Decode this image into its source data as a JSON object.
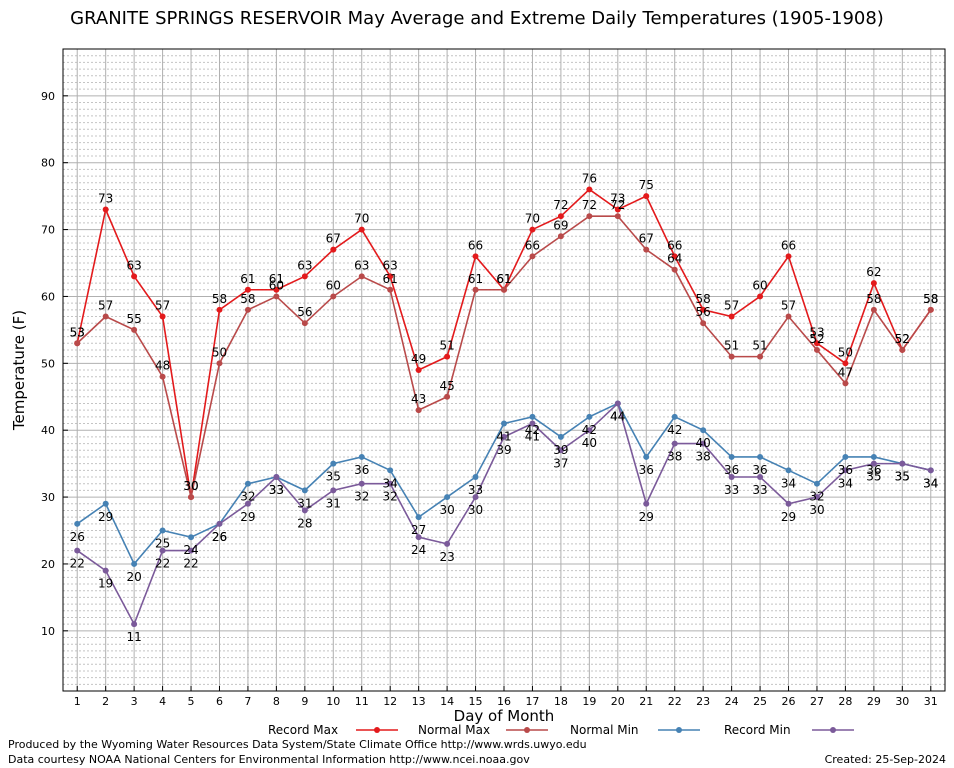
{
  "chart_data": {
    "type": "line",
    "title": "GRANITE SPRINGS RESERVOIR May Average and Extreme Daily Temperatures (1905-1908)",
    "xlabel": "Day of Month",
    "ylabel": "Temperature (F)",
    "xlim": [
      0.5,
      31.5
    ],
    "ylim": [
      1,
      97
    ],
    "yticks": [
      10,
      20,
      30,
      40,
      50,
      60,
      70,
      80,
      90
    ],
    "x": [
      1,
      2,
      3,
      4,
      5,
      6,
      7,
      8,
      9,
      10,
      11,
      12,
      13,
      14,
      15,
      16,
      17,
      18,
      19,
      20,
      21,
      22,
      23,
      24,
      25,
      26,
      27,
      28,
      29,
      30,
      31
    ],
    "grid": true,
    "legend_position": "bottom",
    "series": [
      {
        "name": "Record Max",
        "color": "#e31a1c",
        "values": [
          53,
          73,
          63,
          57,
          30,
          58,
          61,
          61,
          63,
          67,
          70,
          63,
          49,
          51,
          66,
          61,
          70,
          72,
          76,
          73,
          75,
          66,
          58,
          57,
          60,
          66,
          53,
          50,
          62,
          52,
          58
        ]
      },
      {
        "name": "Normal Max",
        "color": "#b94a4a",
        "values": [
          53,
          57,
          55,
          48,
          30,
          50,
          58,
          60,
          56,
          60,
          63,
          61,
          43,
          45,
          61,
          61,
          66,
          69,
          72,
          72,
          67,
          64,
          56,
          51,
          51,
          57,
          52,
          47,
          58,
          52,
          58
        ]
      },
      {
        "name": "Normal Min",
        "color": "#4682b4",
        "values": [
          26,
          29,
          20,
          25,
          24,
          26,
          32,
          33,
          31,
          35,
          36,
          34,
          27,
          30,
          33,
          41,
          42,
          39,
          42,
          44,
          36,
          42,
          40,
          36,
          36,
          34,
          32,
          36,
          36,
          35,
          34
        ]
      },
      {
        "name": "Record Min",
        "color": "#7b5a9a",
        "values": [
          22,
          19,
          11,
          22,
          22,
          26,
          29,
          33,
          28,
          31,
          32,
          32,
          24,
          23,
          30,
          39,
          41,
          37,
          40,
          44,
          29,
          38,
          38,
          33,
          33,
          29,
          30,
          34,
          35,
          35,
          34
        ]
      }
    ]
  },
  "footer": {
    "credit_line1": "Produced by the Wyoming Water Resources Data System/State Climate Office http://www.wrds.uwyo.edu",
    "credit_line2": "Data courtesy NOAA National Centers for Environmental Information http://www.ncei.noaa.gov",
    "created": "Created: 25-Sep-2024"
  }
}
